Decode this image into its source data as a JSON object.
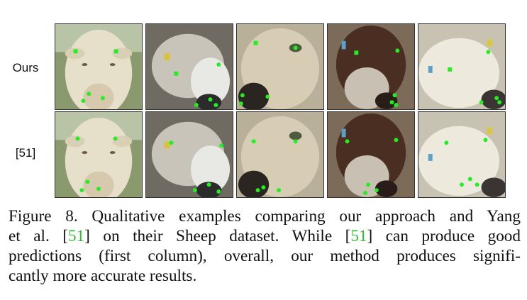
{
  "rows": [
    {
      "label": "Ours"
    },
    {
      "label": "[51]"
    }
  ],
  "colors": {
    "landmark": "#22ee22",
    "citation": "#2fbf2f"
  },
  "caption": {
    "line1": "Figure 8. Qualitative examples comparing our approach and Yang",
    "line2_a": "et al. [",
    "line2_cite1": "51",
    "line2_b": "] on their Sheep dataset.  While [",
    "line2_cite2": "51",
    "line2_c": "] can produce good",
    "line3": "predictions (first column), overall, our method produces signifi-",
    "line4": "cantly more accurate results."
  }
}
